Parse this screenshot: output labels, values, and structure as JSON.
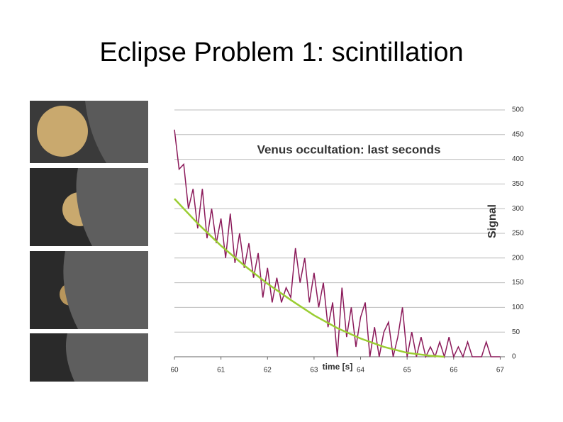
{
  "slide_title": "Eclipse Problem 1: scintillation",
  "chart_data": {
    "type": "line",
    "title": "Venus occultation: last seconds",
    "x_label": "time [s]",
    "y_label": "Signal",
    "xlim": [
      60,
      67.1
    ],
    "xticks": [
      60,
      61,
      62,
      63,
      64,
      65,
      66,
      67
    ],
    "ylim": [
      0,
      500
    ],
    "yticks": [
      0,
      50,
      100,
      150,
      200,
      250,
      300,
      350,
      400,
      450,
      500
    ],
    "grid": true,
    "series": [
      {
        "color": "#8b1a5a",
        "x": [
          60.0,
          60.1,
          60.2,
          60.3,
          60.4,
          60.5,
          60.6,
          60.7,
          60.8,
          60.9,
          61.0,
          61.1,
          61.2,
          61.3,
          61.4,
          61.5,
          61.6,
          61.7,
          61.8,
          61.9,
          62.0,
          62.1,
          62.2,
          62.3,
          62.4,
          62.5,
          62.6,
          62.7,
          62.8,
          62.9,
          63.0,
          63.1,
          63.2,
          63.3,
          63.4,
          63.5,
          63.6,
          63.7,
          63.8,
          63.9,
          64.0,
          64.1,
          64.2,
          64.3,
          64.4,
          64.5,
          64.6,
          64.7,
          64.8,
          64.9,
          65.0,
          65.1,
          65.2,
          65.3,
          65.4,
          65.5,
          65.6,
          65.7,
          65.8,
          65.9,
          66.0,
          66.1,
          66.2,
          66.3,
          66.4,
          66.5,
          66.6,
          66.7,
          66.8,
          66.9,
          67.0
        ],
        "values": [
          460,
          380,
          390,
          300,
          340,
          260,
          340,
          240,
          300,
          230,
          280,
          200,
          290,
          190,
          250,
          180,
          230,
          160,
          210,
          120,
          180,
          110,
          160,
          110,
          140,
          120,
          220,
          150,
          200,
          110,
          170,
          100,
          150,
          60,
          110,
          0,
          140,
          40,
          100,
          20,
          80,
          110,
          0,
          60,
          0,
          50,
          70,
          0,
          40,
          100,
          0,
          50,
          0,
          40,
          0,
          20,
          0,
          30,
          0,
          40,
          0,
          20,
          0,
          30,
          0,
          0,
          0,
          30,
          0,
          0,
          0
        ]
      },
      {
        "color": "#9acd32",
        "x": [
          60,
          60.5,
          61,
          61.5,
          62,
          62.5,
          63,
          63.5,
          64,
          64.5,
          65,
          65.5,
          65.8
        ],
        "values": [
          320,
          270,
          225,
          185,
          148,
          115,
          84,
          58,
          37,
          20,
          8,
          2,
          0
        ]
      }
    ]
  }
}
